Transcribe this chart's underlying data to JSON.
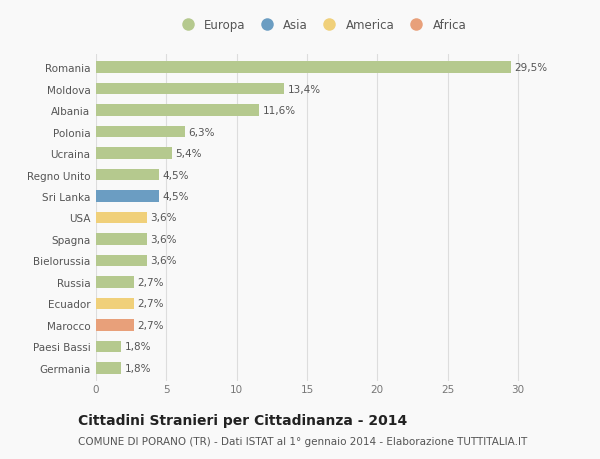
{
  "countries": [
    "Romania",
    "Moldova",
    "Albania",
    "Polonia",
    "Ucraina",
    "Regno Unito",
    "Sri Lanka",
    "USA",
    "Spagna",
    "Bielorussia",
    "Russia",
    "Ecuador",
    "Marocco",
    "Paesi Bassi",
    "Germania"
  ],
  "values": [
    29.5,
    13.4,
    11.6,
    6.3,
    5.4,
    4.5,
    4.5,
    3.6,
    3.6,
    3.6,
    2.7,
    2.7,
    2.7,
    1.8,
    1.8
  ],
  "labels": [
    "29,5%",
    "13,4%",
    "11,6%",
    "6,3%",
    "5,4%",
    "4,5%",
    "4,5%",
    "3,6%",
    "3,6%",
    "3,6%",
    "2,7%",
    "2,7%",
    "2,7%",
    "1,8%",
    "1,8%"
  ],
  "continent": [
    "Europa",
    "Europa",
    "Europa",
    "Europa",
    "Europa",
    "Europa",
    "Asia",
    "America",
    "Europa",
    "Europa",
    "Europa",
    "America",
    "Africa",
    "Europa",
    "Europa"
  ],
  "colors": {
    "Europa": "#b5c98e",
    "Asia": "#6b9dc2",
    "America": "#f0d07a",
    "Africa": "#e8a07a"
  },
  "legend_colors": {
    "Europa": "#b5c98e",
    "Asia": "#6b9dc2",
    "America": "#f0d07a",
    "Africa": "#e8a07a"
  },
  "xlim": [
    0,
    32
  ],
  "xticks": [
    0,
    5,
    10,
    15,
    20,
    25,
    30
  ],
  "title": "Cittadini Stranieri per Cittadinanza - 2014",
  "subtitle": "COMUNE DI PORANO (TR) - Dati ISTAT al 1° gennaio 2014 - Elaborazione TUTTITALIA.IT",
  "background_color": "#f9f9f9",
  "bar_height": 0.55,
  "grid_color": "#dddddd",
  "title_fontsize": 10,
  "subtitle_fontsize": 7.5,
  "label_fontsize": 7.5,
  "tick_fontsize": 7.5
}
